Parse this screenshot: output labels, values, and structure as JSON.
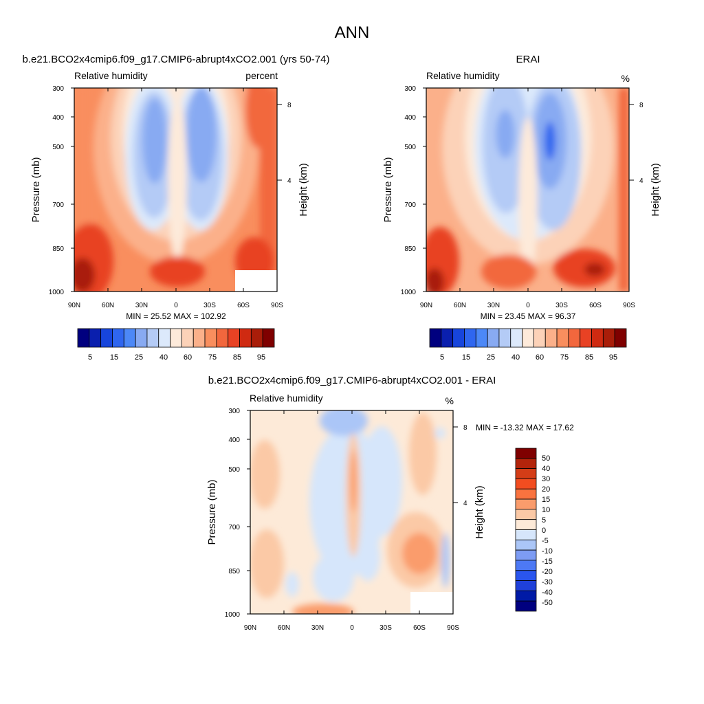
{
  "figure": {
    "title": "ANN"
  },
  "colors": {
    "abs_palette": [
      "#00007f",
      "#0a1fae",
      "#1745dc",
      "#2f66ef",
      "#4c88f7",
      "#88aaf2",
      "#b4cbf6",
      "#dce9fb",
      "#fdeada",
      "#fcd2b8",
      "#fbb08a",
      "#f98e5e",
      "#f2673d",
      "#e84224",
      "#cf2a11",
      "#a91d09",
      "#7f0000"
    ],
    "diff_palette": [
      "#00007f",
      "#001aa6",
      "#1f40d9",
      "#2a55ee",
      "#4d79f5",
      "#7d9cf4",
      "#abc6f7",
      "#d6e6fb",
      "#fdead8",
      "#fbc9a6",
      "#fa9c6c",
      "#f9733f",
      "#f24d20",
      "#d43d17",
      "#b3240b",
      "#7f0000"
    ]
  },
  "chart_data": [
    {
      "id": "model",
      "type": "contour",
      "title": "b.e21.BCO2x4cmip6.f09_g17.CMIP6-abrupt4xCO2.001 (yrs 50-74)",
      "left_label": "Relative humidity",
      "right_label": "percent",
      "ylabel": "Pressure (mb)",
      "y2label": "Height (km)",
      "x_ticks": [
        "90N",
        "60N",
        "30N",
        "0",
        "30S",
        "60S",
        "90S"
      ],
      "y_ticks": [
        "300",
        "400",
        "500",
        "700",
        "850",
        "1000"
      ],
      "y2_ticks": [
        "8",
        "4"
      ],
      "stats": "MIN =  25.52  MAX = 102.92",
      "min": 25.52,
      "max": 102.92,
      "levels": [
        5,
        10,
        15,
        20,
        25,
        30,
        40,
        50,
        60,
        65,
        70,
        75,
        80,
        85,
        90,
        95
      ],
      "colorbar_labels": [
        "5",
        "15",
        "25",
        "40",
        "60",
        "75",
        "85",
        "95"
      ]
    },
    {
      "id": "obs",
      "type": "contour",
      "title": "ERAI",
      "left_label": "Relative humidity",
      "right_label": "%",
      "ylabel": "Pressure (mb)",
      "y2label": "Height (km)",
      "x_ticks": [
        "90N",
        "60N",
        "30N",
        "0",
        "30S",
        "60S",
        "90S"
      ],
      "y_ticks": [
        "300",
        "400",
        "500",
        "700",
        "850",
        "1000"
      ],
      "y2_ticks": [
        "8",
        "4"
      ],
      "stats": "MIN =  23.45  MAX =  96.37",
      "min": 23.45,
      "max": 96.37,
      "levels": [
        5,
        10,
        15,
        20,
        25,
        30,
        40,
        50,
        60,
        65,
        70,
        75,
        80,
        85,
        90,
        95
      ],
      "colorbar_labels": [
        "5",
        "15",
        "25",
        "40",
        "60",
        "75",
        "85",
        "95"
      ]
    },
    {
      "id": "diff",
      "type": "contour",
      "title": "b.e21.BCO2x4cmip6.f09_g17.CMIP6-abrupt4xCO2.001 - ERAI",
      "left_label": "Relative humidity",
      "right_label": "%",
      "ylabel": "Pressure (mb)",
      "y2label": "Height (km)",
      "x_ticks": [
        "90N",
        "60N",
        "30N",
        "0",
        "30S",
        "60S",
        "90S"
      ],
      "y_ticks": [
        "300",
        "400",
        "500",
        "700",
        "850",
        "1000"
      ],
      "y2_ticks": [
        "8",
        "4"
      ],
      "stats": "MIN = -13.32  MAX =  17.62",
      "min": -13.32,
      "max": 17.62,
      "colorbar_labels": [
        "50",
        "40",
        "30",
        "20",
        "15",
        "10",
        "5",
        "0",
        "-5",
        "-10",
        "-15",
        "-20",
        "-30",
        "-40",
        "-50"
      ]
    }
  ]
}
